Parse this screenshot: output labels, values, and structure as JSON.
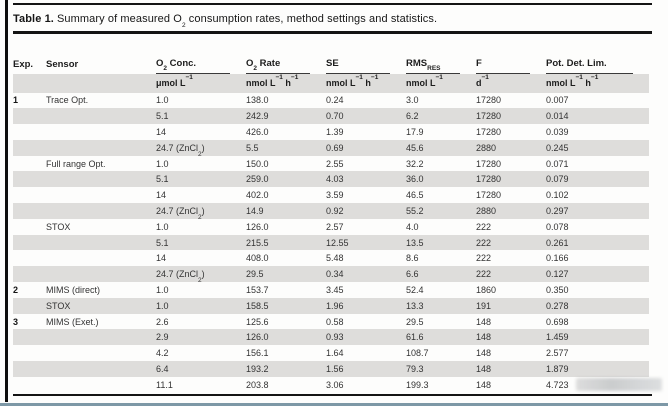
{
  "title": {
    "label": "Table 1.",
    "text_runs": [
      {
        "t": "Summary of measured O"
      },
      {
        "sub": "2"
      },
      {
        "t": " consumption rates, method settings and statistics."
      }
    ]
  },
  "colors": {
    "band": "#dedddb",
    "rule": "#141414",
    "bottom_edge": "#7d98a6"
  },
  "table": {
    "columns": [
      {
        "key": "exp",
        "has_unit_rule": false,
        "label_runs": [
          {
            "t": "Exp."
          }
        ],
        "unit_runs": []
      },
      {
        "key": "sensor",
        "has_unit_rule": false,
        "label_runs": [
          {
            "t": "Sensor"
          }
        ],
        "unit_runs": []
      },
      {
        "key": "o2-conc",
        "has_unit_rule": true,
        "label_runs": [
          {
            "t": "O"
          },
          {
            "sub": "2"
          },
          {
            "t": " Conc."
          }
        ],
        "unit_runs": [
          {
            "t": "μmol L"
          },
          {
            "sup": "−1"
          }
        ]
      },
      {
        "key": "o2-rate",
        "has_unit_rule": true,
        "label_runs": [
          {
            "t": "O"
          },
          {
            "sub": "2"
          },
          {
            "t": " Rate"
          }
        ],
        "unit_runs": [
          {
            "t": "nmol L"
          },
          {
            "sup": "−1"
          },
          {
            "t": " h"
          },
          {
            "sup": "−1"
          }
        ]
      },
      {
        "key": "se",
        "has_unit_rule": true,
        "label_runs": [
          {
            "t": "SE"
          }
        ],
        "unit_runs": [
          {
            "t": "nmol L"
          },
          {
            "sup": "−1"
          },
          {
            "t": " h"
          },
          {
            "sup": "−1"
          }
        ]
      },
      {
        "key": "rms-res",
        "has_unit_rule": true,
        "label_runs": [
          {
            "t": "RMS"
          },
          {
            "sub": "RES"
          }
        ],
        "unit_runs": [
          {
            "t": "nmol L"
          },
          {
            "sup": "−1"
          }
        ]
      },
      {
        "key": "f",
        "has_unit_rule": true,
        "label_runs": [
          {
            "t": "F"
          }
        ],
        "unit_runs": [
          {
            "t": "d"
          },
          {
            "sup": "−1"
          }
        ]
      },
      {
        "key": "pot-det-lim",
        "has_unit_rule": true,
        "label_runs": [
          {
            "t": "Pot. Det. Lim."
          }
        ],
        "unit_runs": [
          {
            "t": "nmol L"
          },
          {
            "sup": "−1"
          },
          {
            "t": " h"
          },
          {
            "sup": "−1"
          }
        ]
      }
    ],
    "znCl2_conc_runs": [
      {
        "t": "24.7 (ZnCl"
      },
      {
        "sub": "2"
      },
      {
        "t": ")"
      }
    ],
    "rows": [
      {
        "exp": "1",
        "sensor": "Trace Opt.",
        "conc": "1.0",
        "conc_special": false,
        "rate": "138.0",
        "se": "0.24",
        "rms": "3.0",
        "f": "17280",
        "pdl": "0.007"
      },
      {
        "exp": "",
        "sensor": "",
        "conc": "5.1",
        "conc_special": false,
        "rate": "242.9",
        "se": "0.70",
        "rms": "6.2",
        "f": "17280",
        "pdl": "0.014"
      },
      {
        "exp": "",
        "sensor": "",
        "conc": "14",
        "conc_special": false,
        "rate": "426.0",
        "se": "1.39",
        "rms": "17.9",
        "f": "17280",
        "pdl": "0.039"
      },
      {
        "exp": "",
        "sensor": "",
        "conc": "",
        "conc_special": true,
        "rate": "5.5",
        "se": "0.69",
        "rms": "45.6",
        "f": "2880",
        "pdl": "0.245"
      },
      {
        "exp": "",
        "sensor": "Full range Opt.",
        "conc": "1.0",
        "conc_special": false,
        "rate": "150.0",
        "se": "2.55",
        "rms": "32.2",
        "f": "17280",
        "pdl": "0.071"
      },
      {
        "exp": "",
        "sensor": "",
        "conc": "5.1",
        "conc_special": false,
        "rate": "259.0",
        "se": "4.03",
        "rms": "36.0",
        "f": "17280",
        "pdl": "0.079"
      },
      {
        "exp": "",
        "sensor": "",
        "conc": "14",
        "conc_special": false,
        "rate": "402.0",
        "se": "3.59",
        "rms": "46.5",
        "f": "17280",
        "pdl": "0.102"
      },
      {
        "exp": "",
        "sensor": "",
        "conc": "",
        "conc_special": true,
        "rate": "14.9",
        "se": "0.92",
        "rms": "55.2",
        "f": "2880",
        "pdl": "0.297"
      },
      {
        "exp": "",
        "sensor": "STOX",
        "conc": "1.0",
        "conc_special": false,
        "rate": "126.0",
        "se": "2.57",
        "rms": "4.0",
        "f": "222",
        "pdl": "0.078"
      },
      {
        "exp": "",
        "sensor": "",
        "conc": "5.1",
        "conc_special": false,
        "rate": "215.5",
        "se": "12.55",
        "rms": "13.5",
        "f": "222",
        "pdl": "0.261"
      },
      {
        "exp": "",
        "sensor": "",
        "conc": "14",
        "conc_special": false,
        "rate": "408.0",
        "se": "5.48",
        "rms": "8.6",
        "f": "222",
        "pdl": "0.166"
      },
      {
        "exp": "",
        "sensor": "",
        "conc": "",
        "conc_special": true,
        "rate": "29.5",
        "se": "0.34",
        "rms": "6.6",
        "f": "222",
        "pdl": "0.127"
      },
      {
        "exp": "2",
        "sensor": "MIMS (direct)",
        "conc": "1.0",
        "conc_special": false,
        "rate": "153.7",
        "se": "3.45",
        "rms": "52.4",
        "f": "1860",
        "pdl": "0.350"
      },
      {
        "exp": "",
        "sensor": "STOX",
        "conc": "1.0",
        "conc_special": false,
        "rate": "158.5",
        "se": "1.96",
        "rms": "13.3",
        "f": "191",
        "pdl": "0.278"
      },
      {
        "exp": "3",
        "sensor": "MIMS (Exet.)",
        "conc": "2.6",
        "conc_special": false,
        "rate": "125.6",
        "se": "0.58",
        "rms": "29.5",
        "f": "148",
        "pdl": "0.698"
      },
      {
        "exp": "",
        "sensor": "",
        "conc": "2.9",
        "conc_special": false,
        "rate": "126.0",
        "se": "0.93",
        "rms": "61.6",
        "f": "148",
        "pdl": "1.459"
      },
      {
        "exp": "",
        "sensor": "",
        "conc": "4.2",
        "conc_special": false,
        "rate": "156.1",
        "se": "1.64",
        "rms": "108.7",
        "f": "148",
        "pdl": "2.577"
      },
      {
        "exp": "",
        "sensor": "",
        "conc": "6.4",
        "conc_special": false,
        "rate": "193.2",
        "se": "1.56",
        "rms": "79.3",
        "f": "148",
        "pdl": "1.879"
      },
      {
        "exp": "",
        "sensor": "",
        "conc": "11.1",
        "conc_special": false,
        "rate": "203.8",
        "se": "3.06",
        "rms": "199.3",
        "f": "148",
        "pdl": "4.723"
      }
    ]
  }
}
